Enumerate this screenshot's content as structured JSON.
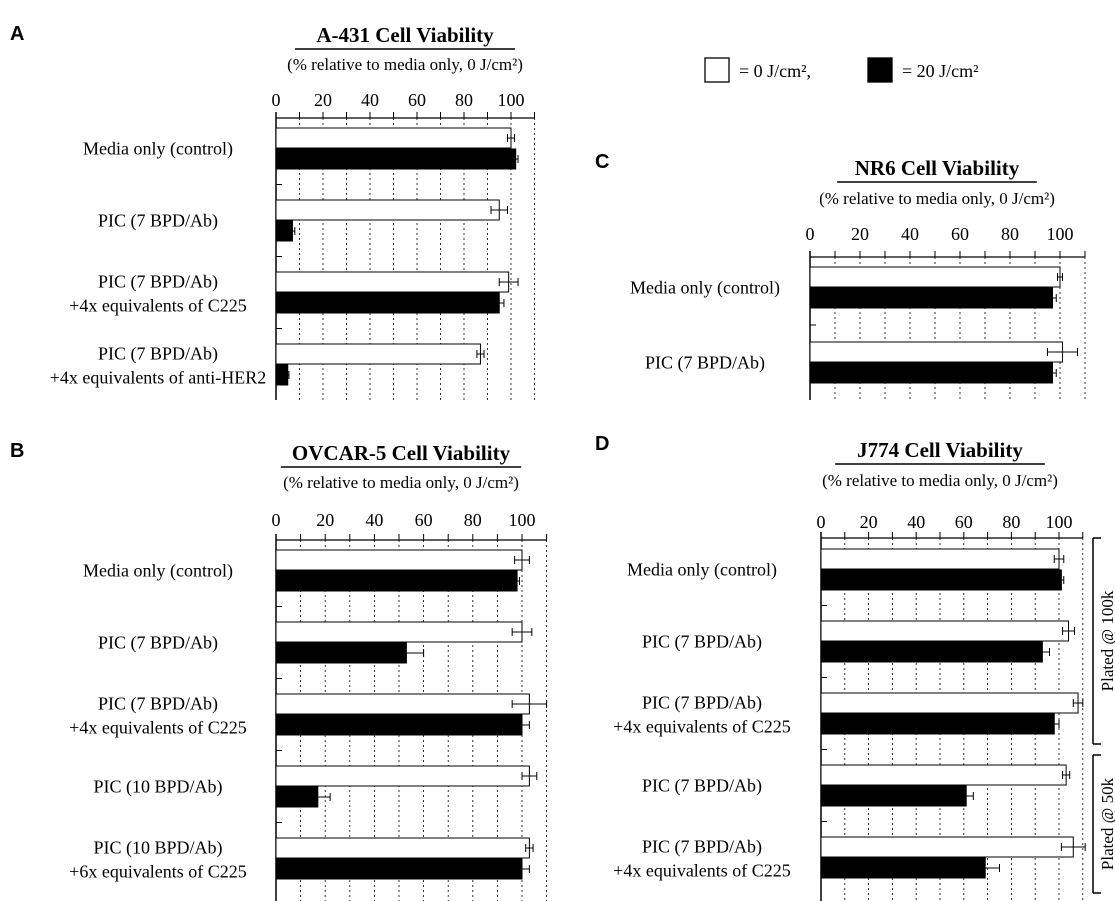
{
  "legend": {
    "items": [
      {
        "label": "= 0 J/cm²,",
        "color": "#ffffff"
      },
      {
        "label": "= 20 J/cm²",
        "color": "#000000"
      }
    ]
  },
  "chart_data": [
    {
      "panel": "A",
      "type": "bar",
      "orientation": "horizontal",
      "title": "A-431 Cell Viability",
      "subtitle": "(% relative to media only, 0 J/cm²)",
      "ticks": [
        "0",
        "20",
        "40",
        "60",
        "80",
        "100"
      ],
      "xlim": [
        0,
        110
      ],
      "grid": "dotted vertical",
      "categories": [
        [
          "Media only (control)"
        ],
        [
          "PIC (7 BPD/Ab)"
        ],
        [
          "PIC (7 BPD/Ab)",
          "+4x equivalents of C225"
        ],
        [
          "PIC (7 BPD/Ab)",
          "+4x equivalents of anti-HER2"
        ]
      ],
      "series": [
        {
          "name": "0 J/cm²",
          "color": "#ffffff",
          "values": [
            100,
            95,
            99,
            87
          ],
          "errors": [
            1.5,
            3.5,
            4,
            1.5
          ]
        },
        {
          "name": "20 J/cm²",
          "color": "#000000",
          "values": [
            102,
            7,
            95,
            5
          ],
          "errors": [
            1,
            1,
            2,
            0.5
          ]
        }
      ]
    },
    {
      "panel": "B",
      "type": "bar",
      "orientation": "horizontal",
      "title": "OVCAR-5 Cell Viability",
      "subtitle": "(% relative to media only, 0 J/cm²)",
      "ticks": [
        "0",
        "20",
        "40",
        "60",
        "80",
        "100"
      ],
      "xlim": [
        0,
        110
      ],
      "grid": "dotted vertical",
      "categories": [
        [
          "Media only (control)"
        ],
        [
          "PIC (7 BPD/Ab)"
        ],
        [
          "PIC (7 BPD/Ab)",
          "+4x equivalents of C225"
        ],
        [
          "PIC (10 BPD/Ab)"
        ],
        [
          "PIC (10 BPD/Ab)",
          "+6x equivalents of C225"
        ]
      ],
      "series": [
        {
          "name": "0 J/cm²",
          "color": "#ffffff",
          "values": [
            100,
            100,
            103,
            103,
            103
          ],
          "errors": [
            3,
            4,
            7,
            3,
            1.5
          ]
        },
        {
          "name": "20 J/cm²",
          "color": "#000000",
          "values": [
            98,
            53,
            100,
            17,
            100
          ],
          "errors": [
            1,
            7,
            3,
            5,
            3
          ]
        }
      ]
    },
    {
      "panel": "C",
      "type": "bar",
      "orientation": "horizontal",
      "title": "NR6 Cell Viability",
      "subtitle": "(% relative to media only, 0 J/cm²)",
      "ticks": [
        "0",
        "20",
        "40",
        "60",
        "80",
        "100"
      ],
      "xlim": [
        0,
        110
      ],
      "grid": "dotted vertical",
      "categories": [
        [
          "Media only (control)"
        ],
        [
          "PIC (7 BPD/Ab)"
        ]
      ],
      "series": [
        {
          "name": "0 J/cm²",
          "color": "#ffffff",
          "values": [
            100,
            101
          ],
          "errors": [
            1,
            6
          ]
        },
        {
          "name": "20 J/cm²",
          "color": "#000000",
          "values": [
            97,
            97
          ],
          "errors": [
            1.5,
            1.5
          ]
        }
      ]
    },
    {
      "panel": "D",
      "type": "bar",
      "orientation": "horizontal",
      "title": "J774 Cell Viability",
      "subtitle": "(% relative to media only, 0 J/cm²)",
      "ticks": [
        "0",
        "20",
        "40",
        "60",
        "80",
        "100"
      ],
      "xlim": [
        0,
        110
      ],
      "grid": "dotted vertical",
      "categories": [
        [
          "Media only (control)"
        ],
        [
          "PIC (7 BPD/Ab)"
        ],
        [
          "PIC (7 BPD/Ab)",
          "+4x equivalents of C225"
        ],
        [
          "PIC (7 BPD/Ab)"
        ],
        [
          "PIC (7 BPD/Ab)",
          "+4x equivalents of C225"
        ]
      ],
      "groups": [
        {
          "label": "Plated @ 100k",
          "categories": [
            0,
            1,
            2
          ]
        },
        {
          "label": "Plated @ 50k",
          "categories": [
            3,
            4
          ]
        }
      ],
      "series": [
        {
          "name": "0 J/cm²",
          "color": "#ffffff",
          "values": [
            100,
            104,
            108,
            103,
            106
          ],
          "errors": [
            2,
            2.5,
            2,
            1.5,
            5
          ]
        },
        {
          "name": "20 J/cm²",
          "color": "#000000",
          "values": [
            101,
            93,
            98,
            61,
            69
          ],
          "errors": [
            1,
            3,
            2,
            3,
            6
          ]
        }
      ]
    }
  ]
}
